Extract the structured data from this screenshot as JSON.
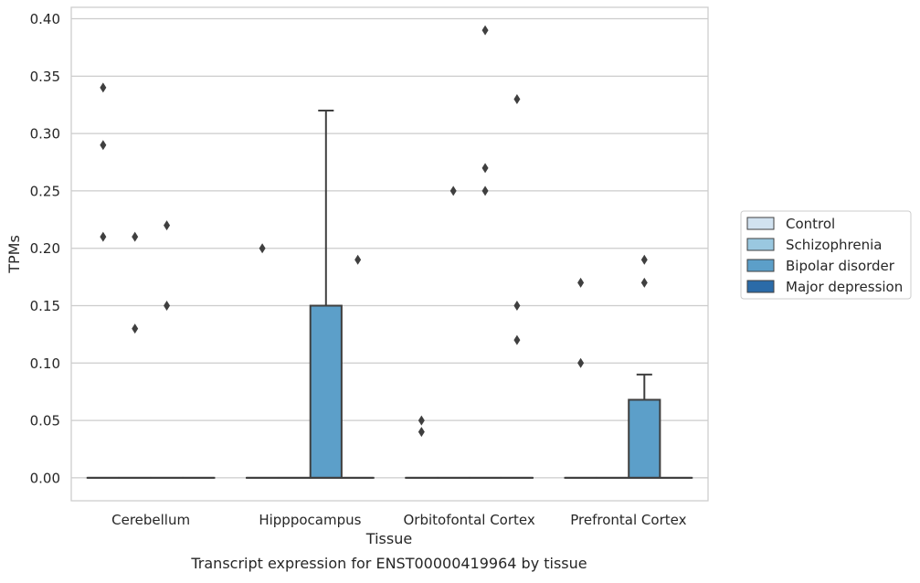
{
  "chart_data": {
    "type": "box",
    "title": "Transcript expression for ENST00000419964 by tissue",
    "xlabel": "Tissue",
    "ylabel": "TPMs",
    "ylim": [
      -0.02,
      0.41
    ],
    "yticks": [
      "0.00",
      "0.05",
      "0.10",
      "0.15",
      "0.20",
      "0.25",
      "0.30",
      "0.35",
      "0.40"
    ],
    "grid": true,
    "legend_position": "right",
    "categories": [
      "Cerebellum",
      "Hipppocampus",
      "Orbitofontal Cortex",
      "Prefrontal Cortex"
    ],
    "series": [
      {
        "name": "Control",
        "color": "#d1e2f0",
        "boxes": [
          {
            "q1": 0,
            "median": 0,
            "q3": 0,
            "whisker_low": 0,
            "whisker_high": 0,
            "outliers": [
              0.21,
              0.29,
              0.34
            ]
          },
          {
            "q1": 0,
            "median": 0,
            "q3": 0,
            "whisker_low": 0,
            "whisker_high": 0,
            "outliers": [
              0.2
            ]
          },
          {
            "q1": 0,
            "median": 0,
            "q3": 0,
            "whisker_low": 0,
            "whisker_high": 0,
            "outliers": [
              0.04,
              0.05
            ]
          },
          {
            "q1": 0,
            "median": 0,
            "q3": 0,
            "whisker_low": 0,
            "whisker_high": 0,
            "outliers": [
              0.1,
              0.17
            ]
          }
        ]
      },
      {
        "name": "Schizophrenia",
        "color": "#9ac8e0",
        "boxes": [
          {
            "q1": 0,
            "median": 0,
            "q3": 0,
            "whisker_low": 0,
            "whisker_high": 0,
            "outliers": [
              0.13,
              0.21
            ]
          },
          {
            "q1": 0,
            "median": 0,
            "q3": 0,
            "whisker_low": 0,
            "whisker_high": 0,
            "outliers": []
          },
          {
            "q1": 0,
            "median": 0,
            "q3": 0,
            "whisker_low": 0,
            "whisker_high": 0,
            "outliers": [
              0.25
            ]
          },
          {
            "q1": 0,
            "median": 0,
            "q3": 0,
            "whisker_low": 0,
            "whisker_high": 0,
            "outliers": []
          }
        ]
      },
      {
        "name": "Bipolar disorder",
        "color": "#5c9fc9",
        "boxes": [
          {
            "q1": 0,
            "median": 0,
            "q3": 0,
            "whisker_low": 0,
            "whisker_high": 0,
            "outliers": [
              0.15,
              0.22
            ]
          },
          {
            "q1": 0,
            "median": 0,
            "q3": 0.15,
            "whisker_low": 0,
            "whisker_high": 0.32,
            "outliers": []
          },
          {
            "q1": 0,
            "median": 0,
            "q3": 0,
            "whisker_low": 0,
            "whisker_high": 0,
            "outliers": [
              0.25,
              0.27,
              0.39
            ]
          },
          {
            "q1": 0,
            "median": 0,
            "q3": 0.068,
            "whisker_low": 0,
            "whisker_high": 0.09,
            "outliers": [
              0.17,
              0.19
            ]
          }
        ]
      },
      {
        "name": "Major depression",
        "color": "#2b6ba8",
        "boxes": [
          {
            "q1": 0,
            "median": 0,
            "q3": 0,
            "whisker_low": 0,
            "whisker_high": 0,
            "outliers": []
          },
          {
            "q1": 0,
            "median": 0,
            "q3": 0,
            "whisker_low": 0,
            "whisker_high": 0,
            "outliers": [
              0.19
            ]
          },
          {
            "q1": 0,
            "median": 0,
            "q3": 0,
            "whisker_low": 0,
            "whisker_high": 0,
            "outliers": [
              0.12,
              0.15,
              0.33
            ]
          },
          {
            "q1": 0,
            "median": 0,
            "q3": 0,
            "whisker_low": 0,
            "whisker_high": 0,
            "outliers": []
          }
        ]
      }
    ]
  }
}
